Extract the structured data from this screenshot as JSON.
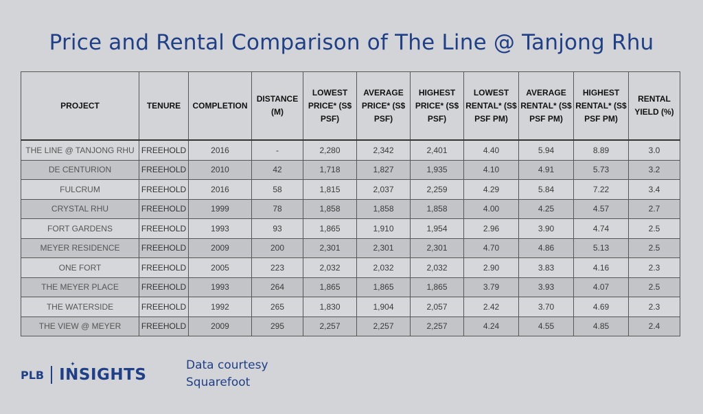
{
  "title": "Price and Rental Comparison of The Line @ Tanjong Rhu",
  "headers": {
    "project": "PROJECT",
    "tenure": "TENURE",
    "completion": "COMPLETION",
    "distance": "DISTANCE (M)",
    "lowest_price": "LOWEST PRICE* (S$ PSF)",
    "average_price": "AVERAGE PRICE* (S$ PSF)",
    "highest_price": "HIGHEST PRICE* (S$ PSF)",
    "lowest_rental": "LOWEST RENTAL* (S$ PSF PM)",
    "average_rental": "AVERAGE RENTAL* (S$ PSF PM)",
    "highest_rental": "HIGHEST RENTAL* (S$ PSF PM)",
    "rental_yield": "RENTAL YIELD (%)"
  },
  "rows": [
    {
      "project": "THE LINE @ TANJONG RHU",
      "tenure": "FREEHOLD",
      "completion": "2016",
      "distance": "-",
      "lowest_price": "2,280",
      "average_price": "2,342",
      "highest_price": "2,401",
      "lowest_rental": "4.40",
      "average_rental": "5.94",
      "highest_rental": "8.89",
      "yield": "3.0"
    },
    {
      "project": "DE CENTURION",
      "tenure": "FREEHOLD",
      "completion": "2010",
      "distance": "42",
      "lowest_price": "1,718",
      "average_price": "1,827",
      "highest_price": "1,935",
      "lowest_rental": "4.10",
      "average_rental": "4.91",
      "highest_rental": "5.73",
      "yield": "3.2"
    },
    {
      "project": "FULCRUM",
      "tenure": "FREEHOLD",
      "completion": "2016",
      "distance": "58",
      "lowest_price": "1,815",
      "average_price": "2,037",
      "highest_price": "2,259",
      "lowest_rental": "4.29",
      "average_rental": "5.84",
      "highest_rental": "7.22",
      "yield": "3.4"
    },
    {
      "project": "CRYSTAL RHU",
      "tenure": "FREEHOLD",
      "completion": "1999",
      "distance": "78",
      "lowest_price": "1,858",
      "average_price": "1,858",
      "highest_price": "1,858",
      "lowest_rental": "4.00",
      "average_rental": "4.25",
      "highest_rental": "4.57",
      "yield": "2.7"
    },
    {
      "project": "FORT GARDENS",
      "tenure": "FREEHOLD",
      "completion": "1993",
      "distance": "93",
      "lowest_price": "1,865",
      "average_price": "1,910",
      "highest_price": "1,954",
      "lowest_rental": "2.96",
      "average_rental": "3.90",
      "highest_rental": "4.74",
      "yield": "2.5"
    },
    {
      "project": "MEYER RESIDENCE",
      "tenure": "FREEHOLD",
      "completion": "2009",
      "distance": "200",
      "lowest_price": "2,301",
      "average_price": "2,301",
      "highest_price": "2,301",
      "lowest_rental": "4.70",
      "average_rental": "4.86",
      "highest_rental": "5.13",
      "yield": "2.5"
    },
    {
      "project": "ONE FORT",
      "tenure": "FREEHOLD",
      "completion": "2005",
      "distance": "223",
      "lowest_price": "2,032",
      "average_price": "2,032",
      "highest_price": "2,032",
      "lowest_rental": "2.90",
      "average_rental": "3.83",
      "highest_rental": "4.16",
      "yield": "2.3"
    },
    {
      "project": "THE MEYER PLACE",
      "tenure": "FREEHOLD",
      "completion": "1993",
      "distance": "264",
      "lowest_price": "1,865",
      "average_price": "1,865",
      "highest_price": "1,865",
      "lowest_rental": "3.79",
      "average_rental": "3.93",
      "highest_rental": "4.07",
      "yield": "2.5"
    },
    {
      "project": "THE WATERSIDE",
      "tenure": "FREEHOLD",
      "completion": "1992",
      "distance": "265",
      "lowest_price": "1,830",
      "average_price": "1,904",
      "highest_price": "2,057",
      "lowest_rental": "2.42",
      "average_rental": "3.70",
      "highest_rental": "4.69",
      "yield": "2.3"
    },
    {
      "project": "THE VIEW @ MEYER",
      "tenure": "FREEHOLD",
      "completion": "2009",
      "distance": "295",
      "lowest_price": "2,257",
      "average_price": "2,257",
      "highest_price": "2,257",
      "lowest_rental": "4.24",
      "average_rental": "4.55",
      "highest_rental": "4.85",
      "yield": "2.4"
    }
  ],
  "footer": {
    "logo_left": "PLB",
    "logo_right": "INSIGHTS",
    "courtesy_line1": "Data courtesy",
    "courtesy_line2": "Squarefoot"
  },
  "colors": {
    "accent": "#1f3f86",
    "background": "#d3d4d8"
  }
}
